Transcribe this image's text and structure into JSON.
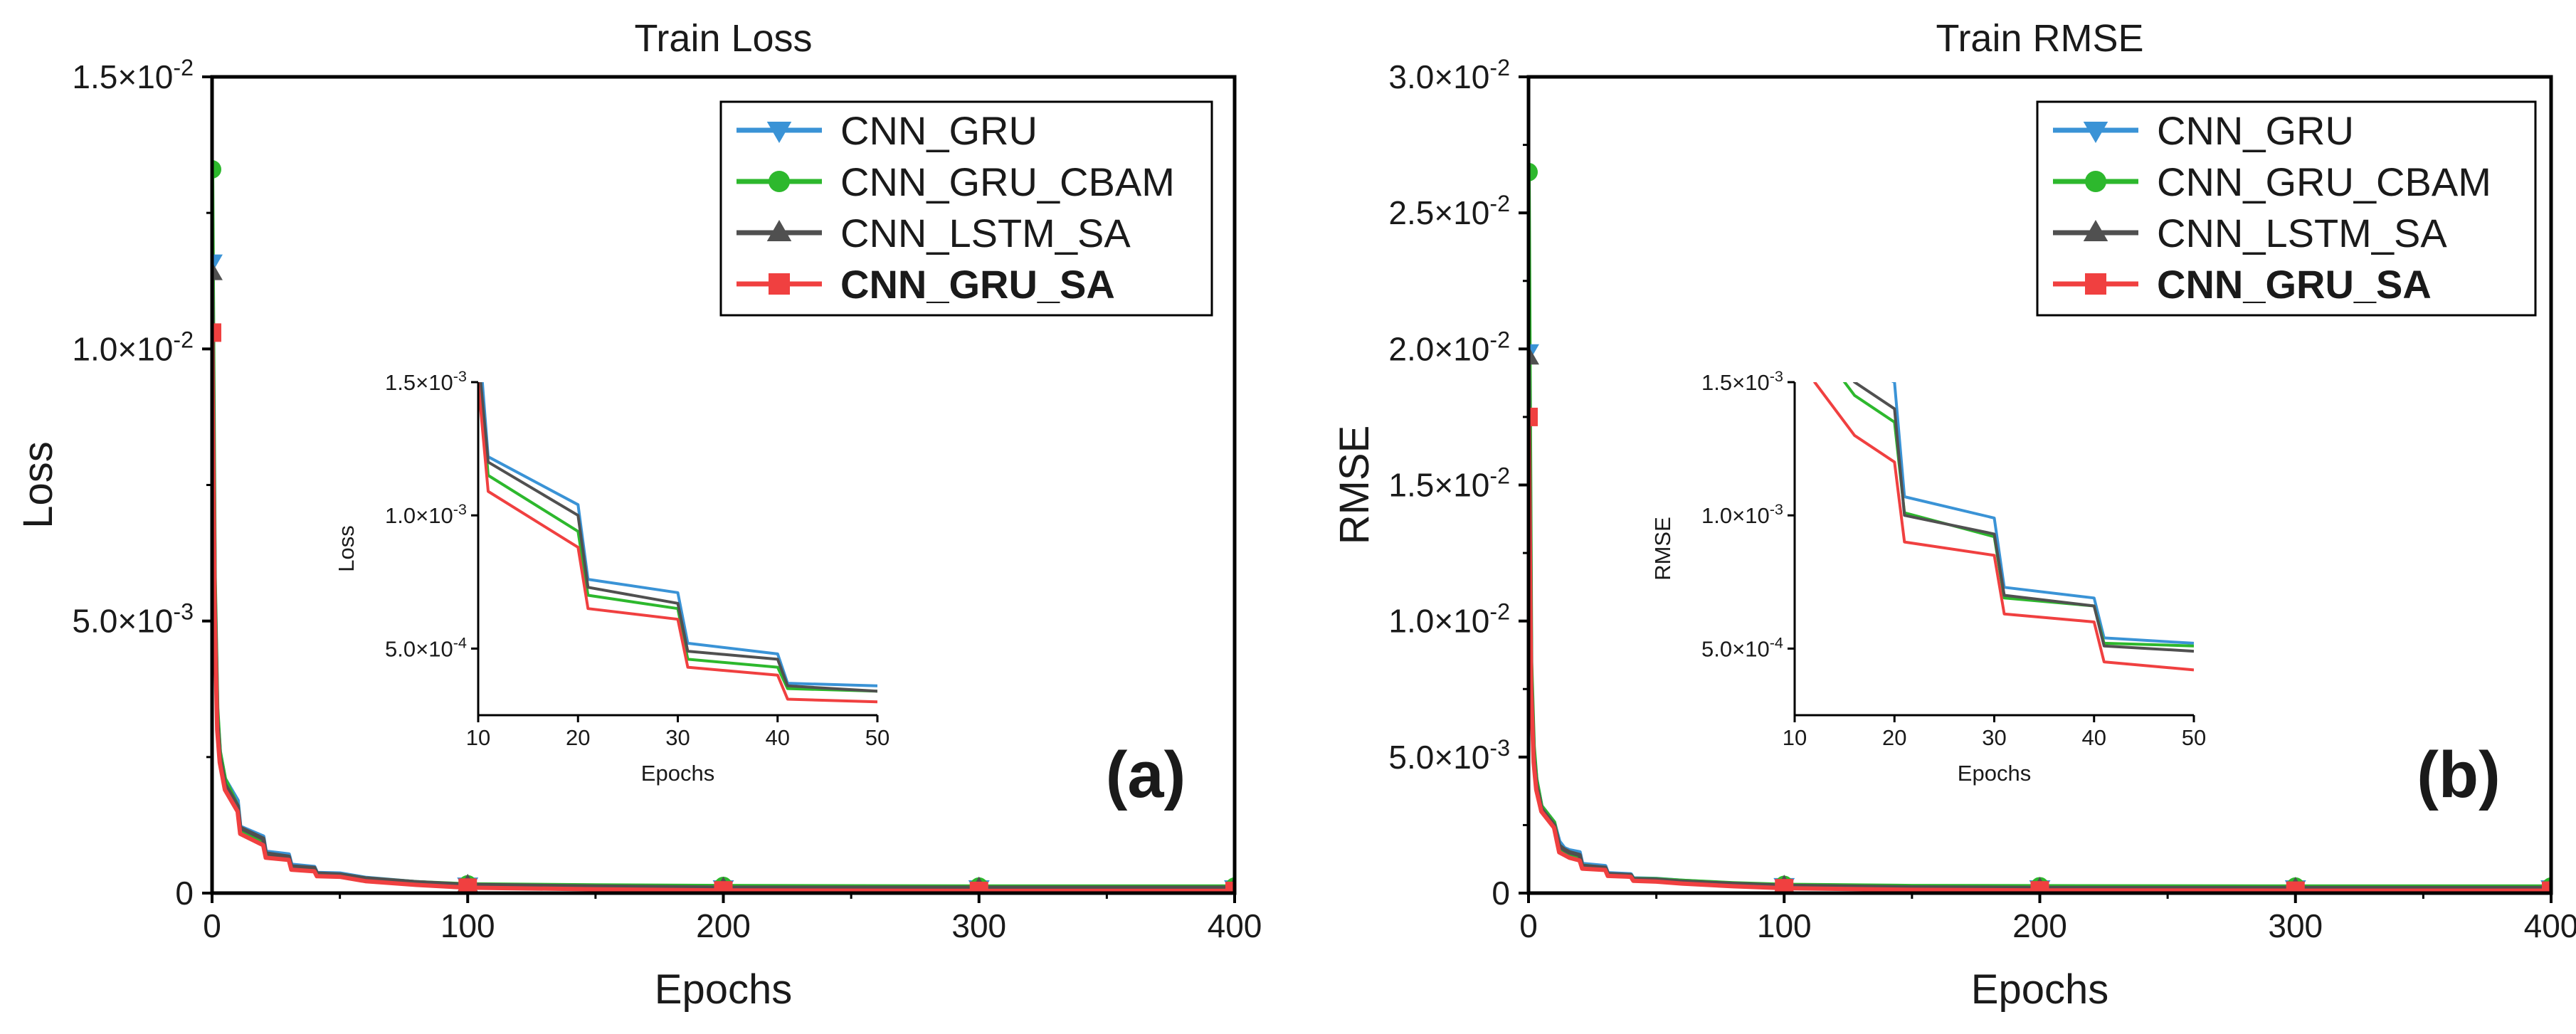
{
  "chart_data": [
    {
      "panel": "(a)",
      "type": "line",
      "title": "Train Loss",
      "xlabel": "Epochs",
      "ylabel": "Loss",
      "xlim": [
        0,
        400
      ],
      "ylim": [
        0,
        0.015
      ],
      "xticks": [
        0,
        100,
        200,
        300,
        400
      ],
      "xtick_labels": [
        "0",
        "100",
        "200",
        "300",
        "400"
      ],
      "yticks": [
        0,
        0.005,
        0.01,
        0.015
      ],
      "ytick_labels": [
        "0",
        "5.0×10",
        "1.0×10",
        "1.5×10"
      ],
      "ytick_exponents": [
        "",
        "-3",
        "-2",
        "-2"
      ],
      "legend_position": "top-right",
      "series": [
        {
          "name": "CNN_GRU",
          "color": "#3a93d6",
          "marker": "triangle-down",
          "bold": false,
          "points": [
            [
              0,
              0.0116
            ],
            [
              1,
              0.0056
            ],
            [
              2,
              0.0033
            ],
            [
              3,
              0.0026
            ],
            [
              5,
              0.0021
            ],
            [
              10,
              0.0017
            ],
            [
              11,
              0.00122
            ],
            [
              20,
              0.00104
            ],
            [
              21,
              0.00076
            ],
            [
              30,
              0.00071
            ],
            [
              31,
              0.00052
            ],
            [
              40,
              0.00048
            ],
            [
              41,
              0.00037
            ],
            [
              50,
              0.00036
            ],
            [
              60,
              0.00028
            ],
            [
              80,
              0.0002
            ],
            [
              100,
              0.00015
            ],
            [
              150,
              0.00012
            ],
            [
              200,
              0.0001
            ],
            [
              300,
              0.0001
            ],
            [
              400,
              0.0001
            ]
          ],
          "markers_x": [
            0,
            100,
            200,
            300,
            400
          ]
        },
        {
          "name": "CNN_GRU_CBAM",
          "color": "#2db82d",
          "marker": "circle",
          "bold": false,
          "points": [
            [
              0,
              0.0133
            ],
            [
              1,
              0.0058
            ],
            [
              2,
              0.0034
            ],
            [
              3,
              0.0026
            ],
            [
              5,
              0.0021
            ],
            [
              10,
              0.0016
            ],
            [
              11,
              0.00115
            ],
            [
              20,
              0.00094
            ],
            [
              21,
              0.0007
            ],
            [
              30,
              0.00065
            ],
            [
              31,
              0.00046
            ],
            [
              40,
              0.00043
            ],
            [
              41,
              0.00035
            ],
            [
              50,
              0.00034
            ],
            [
              60,
              0.00027
            ],
            [
              80,
              0.0002
            ],
            [
              100,
              0.00016
            ],
            [
              150,
              0.00014
            ],
            [
              200,
              0.00013
            ],
            [
              300,
              0.00012
            ],
            [
              400,
              0.00012
            ]
          ],
          "markers_x": [
            0,
            100,
            200,
            300,
            400
          ]
        },
        {
          "name": "CNN_LSTM_SA",
          "color": "#505050",
          "marker": "triangle-up",
          "bold": false,
          "points": [
            [
              0,
              0.0114
            ],
            [
              1,
              0.0055
            ],
            [
              2,
              0.0032
            ],
            [
              3,
              0.0025
            ],
            [
              5,
              0.002
            ],
            [
              10,
              0.0016
            ],
            [
              11,
              0.0012
            ],
            [
              20,
              0.001
            ],
            [
              21,
              0.00073
            ],
            [
              30,
              0.00067
            ],
            [
              31,
              0.00049
            ],
            [
              40,
              0.00046
            ],
            [
              41,
              0.00036
            ],
            [
              50,
              0.00034
            ],
            [
              60,
              0.00027
            ],
            [
              80,
              0.0002
            ],
            [
              100,
              0.00015
            ],
            [
              150,
              0.00012
            ],
            [
              200,
              0.0001
            ],
            [
              300,
              0.0001
            ],
            [
              400,
              0.0001
            ]
          ],
          "markers_x": [
            0,
            100,
            200,
            300,
            400
          ]
        },
        {
          "name": "CNN_GRU_SA",
          "color": "#f04040",
          "marker": "square",
          "bold": true,
          "points": [
            [
              0,
              0.0103
            ],
            [
              1,
              0.0052
            ],
            [
              2,
              0.003
            ],
            [
              3,
              0.0024
            ],
            [
              5,
              0.0019
            ],
            [
              10,
              0.0015
            ],
            [
              11,
              0.00109
            ],
            [
              20,
              0.00088
            ],
            [
              21,
              0.00065
            ],
            [
              30,
              0.00061
            ],
            [
              31,
              0.00043
            ],
            [
              40,
              0.0004
            ],
            [
              41,
              0.00031
            ],
            [
              50,
              0.0003
            ],
            [
              60,
              0.00022
            ],
            [
              80,
              0.00015
            ],
            [
              100,
              0.0001
            ],
            [
              150,
              7e-05
            ],
            [
              200,
              5e-05
            ],
            [
              300,
              4e-05
            ],
            [
              400,
              4e-05
            ]
          ],
          "markers_x": [
            0,
            100,
            200,
            300,
            400
          ]
        }
      ],
      "inset": {
        "xlabel": "Epochs",
        "ylabel": "Loss",
        "xlim": [
          10,
          50
        ],
        "ylim": [
          0.00025,
          0.0015
        ],
        "xticks": [
          10,
          20,
          30,
          40,
          50
        ],
        "xtick_labels": [
          "10",
          "20",
          "30",
          "40",
          "50"
        ],
        "yticks": [
          0.0005,
          0.001,
          0.0015
        ],
        "ytick_labels": [
          "5.0×10",
          "1.0×10",
          "1.5×10"
        ],
        "ytick_exponents": [
          "-4",
          "-3",
          "-3"
        ]
      }
    },
    {
      "panel": "(b)",
      "type": "line",
      "title": "Train RMSE",
      "xlabel": "Epochs",
      "ylabel": "RMSE",
      "xlim": [
        0,
        400
      ],
      "ylim": [
        0,
        0.03
      ],
      "xticks": [
        0,
        100,
        200,
        300,
        400
      ],
      "xtick_labels": [
        "0",
        "100",
        "200",
        "300",
        "400"
      ],
      "yticks": [
        0,
        0.005,
        0.01,
        0.015,
        0.02,
        0.025,
        0.03
      ],
      "ytick_labels": [
        "0",
        "5.0×10",
        "1.0×10",
        "1.5×10",
        "2.0×10",
        "2.5×10",
        "3.0×10"
      ],
      "ytick_exponents": [
        "",
        "-3",
        "-2",
        "-2",
        "-2",
        "-2",
        "-2"
      ],
      "legend_position": "top-right",
      "series": [
        {
          "name": "CNN_GRU",
          "color": "#3a93d6",
          "marker": "triangle-down",
          "bold": false,
          "points": [
            [
              0,
              0.0199
            ],
            [
              1,
              0.008
            ],
            [
              2,
              0.0052
            ],
            [
              3,
              0.0042
            ],
            [
              5,
              0.0032
            ],
            [
              10,
              0.0026
            ],
            [
              12,
              0.0019
            ],
            [
              14,
              0.00165
            ],
            [
              16,
              0.00157
            ],
            [
              20,
              0.0015
            ],
            [
              21,
              0.00107
            ],
            [
              30,
              0.00099
            ],
            [
              31,
              0.00073
            ],
            [
              40,
              0.00069
            ],
            [
              41,
              0.00054
            ],
            [
              50,
              0.00052
            ],
            [
              60,
              0.00045
            ],
            [
              80,
              0.00035
            ],
            [
              100,
              0.00028
            ],
            [
              150,
              0.00022
            ],
            [
              200,
              0.0002
            ],
            [
              300,
              0.0002
            ],
            [
              400,
              0.0002
            ]
          ],
          "markers_x": [
            0,
            100,
            200,
            300,
            400
          ]
        },
        {
          "name": "CNN_GRU_CBAM",
          "color": "#2db82d",
          "marker": "circle",
          "bold": false,
          "points": [
            [
              0,
              0.0265
            ],
            [
              1,
              0.0085
            ],
            [
              2,
              0.0054
            ],
            [
              3,
              0.0042
            ],
            [
              5,
              0.0032
            ],
            [
              10,
              0.0026
            ],
            [
              12,
              0.0017
            ],
            [
              14,
              0.00155
            ],
            [
              16,
              0.00145
            ],
            [
              20,
              0.00135
            ],
            [
              21,
              0.00101
            ],
            [
              30,
              0.00092
            ],
            [
              31,
              0.00069
            ],
            [
              40,
              0.00066
            ],
            [
              41,
              0.00052
            ],
            [
              50,
              0.00051
            ],
            [
              60,
              0.00045
            ],
            [
              80,
              0.00036
            ],
            [
              100,
              0.0003
            ],
            [
              150,
              0.00026
            ],
            [
              200,
              0.00025
            ],
            [
              300,
              0.00024
            ],
            [
              400,
              0.00024
            ]
          ],
          "markers_x": [
            0,
            100,
            200,
            300,
            400
          ]
        },
        {
          "name": "CNN_LSTM_SA",
          "color": "#505050",
          "marker": "triangle-up",
          "bold": false,
          "points": [
            [
              0,
              0.0197
            ],
            [
              1,
              0.0078
            ],
            [
              2,
              0.005
            ],
            [
              3,
              0.004
            ],
            [
              5,
              0.0031
            ],
            [
              10,
              0.0025
            ],
            [
              12,
              0.00175
            ],
            [
              14,
              0.0016
            ],
            [
              16,
              0.0015
            ],
            [
              20,
              0.0014
            ],
            [
              21,
              0.001
            ],
            [
              30,
              0.00093
            ],
            [
              31,
              0.0007
            ],
            [
              40,
              0.00066
            ],
            [
              41,
              0.00051
            ],
            [
              50,
              0.00049
            ],
            [
              60,
              0.00042
            ],
            [
              80,
              0.00034
            ],
            [
              100,
              0.00027
            ],
            [
              150,
              0.00021
            ],
            [
              200,
              0.00019
            ],
            [
              300,
              0.00019
            ],
            [
              400,
              0.00019
            ]
          ],
          "markers_x": [
            0,
            100,
            200,
            300,
            400
          ]
        },
        {
          "name": "CNN_GRU_SA",
          "color": "#f04040",
          "marker": "square",
          "bold": true,
          "points": [
            [
              0,
              0.0175
            ],
            [
              1,
              0.0075
            ],
            [
              2,
              0.0048
            ],
            [
              3,
              0.0038
            ],
            [
              5,
              0.003
            ],
            [
              10,
              0.0024
            ],
            [
              12,
              0.0015
            ],
            [
              14,
              0.0014
            ],
            [
              16,
              0.0013
            ],
            [
              20,
              0.0012
            ],
            [
              21,
              0.0009
            ],
            [
              30,
              0.00085
            ],
            [
              31,
              0.00063
            ],
            [
              40,
              0.0006
            ],
            [
              41,
              0.00045
            ],
            [
              50,
              0.00042
            ],
            [
              60,
              0.00035
            ],
            [
              80,
              0.00025
            ],
            [
              100,
              0.00018
            ],
            [
              150,
              0.00012
            ],
            [
              200,
              0.0001
            ],
            [
              300,
              9e-05
            ],
            [
              400,
              9e-05
            ]
          ],
          "markers_x": [
            0,
            100,
            200,
            300,
            400
          ]
        }
      ],
      "inset": {
        "xlabel": "Epochs",
        "ylabel": "RMSE",
        "xlim": [
          10,
          50
        ],
        "ylim": [
          0.00025,
          0.0015
        ],
        "xticks": [
          10,
          20,
          30,
          40,
          50
        ],
        "xtick_labels": [
          "10",
          "20",
          "30",
          "40",
          "50"
        ],
        "yticks": [
          0.0005,
          0.001,
          0.0015
        ],
        "ytick_labels": [
          "5.0×10",
          "1.0×10",
          "1.5×10"
        ],
        "ytick_exponents": [
          "-4",
          "-3",
          "-3"
        ]
      }
    }
  ]
}
